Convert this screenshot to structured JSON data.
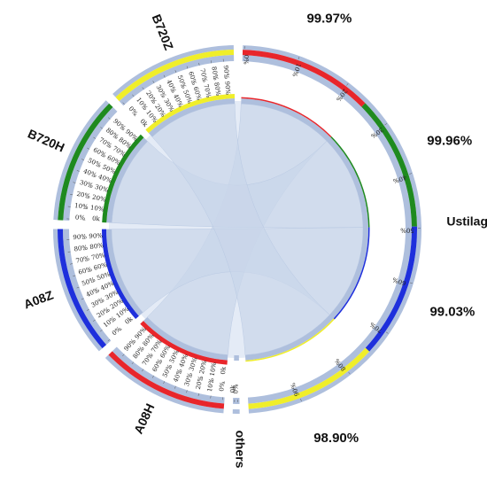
{
  "chart_data": {
    "type": "chord",
    "groups": [
      {
        "name": "Ustilago",
        "value": 4.0,
        "segments": [
          {
            "color": "#e8262b",
            "value": 1.0
          },
          {
            "color": "#1f8a1f",
            "value": 1.0
          },
          {
            "color": "#1e2fdc",
            "value": 1.0
          },
          {
            "color": "#f0ee2a",
            "value": 1.0
          }
        ]
      },
      {
        "name": "others",
        "value": 0.05,
        "segments": []
      },
      {
        "name": "A08H",
        "value": 0.95,
        "segments": [
          {
            "color": "#e8262b",
            "value": 0.95
          }
        ]
      },
      {
        "name": "A08Z",
        "value": 0.95,
        "segments": [
          {
            "color": "#1e2fdc",
            "value": 0.95
          }
        ]
      },
      {
        "name": "B720H",
        "value": 0.95,
        "segments": [
          {
            "color": "#1f8a1f",
            "value": 0.95
          }
        ]
      },
      {
        "name": "B720Z",
        "value": 0.95,
        "segments": [
          {
            "color": "#f0ee2a",
            "value": 0.95
          }
        ]
      }
    ],
    "ustilago_ticks": [
      "0k",
      "10k",
      "20k",
      "30k",
      "40k",
      "50k",
      "60k",
      "70k",
      "80k",
      "90k"
    ],
    "ustilago_pct_ticks": [
      "0%",
      "10%",
      "20%",
      "30%",
      "40%",
      "50%",
      "60%",
      "70%",
      "80%",
      "90%"
    ],
    "sample_ticks": [
      "0k",
      "10%",
      "20%",
      "30%",
      "40%",
      "50%",
      "60%",
      "70%",
      "80%",
      "90%"
    ],
    "sample_pct_ticks": [
      "0%",
      "10%",
      "20%",
      "30%",
      "40%",
      "50%",
      "60%",
      "70%",
      "80%",
      "90%"
    ],
    "others_ticks": [
      "0%",
      "0k"
    ],
    "links": [
      {
        "source": "A08H",
        "target": "Ustilago",
        "color": "#e8262b"
      },
      {
        "source": "B720H",
        "target": "Ustilago",
        "color": "#1f8a1f"
      },
      {
        "source": "A08Z",
        "target": "Ustilago",
        "color": "#1e2fdc"
      },
      {
        "source": "B720Z",
        "target": "Ustilago",
        "color": "#f0ee2a"
      }
    ],
    "annotations": [
      {
        "text": "99.97%",
        "segment": 0
      },
      {
        "text": "99.96%",
        "segment": 1
      },
      {
        "text": "99.03%",
        "segment": 2
      },
      {
        "text": "98.90%",
        "segment": 3
      }
    ],
    "colors": {
      "track": "#aebfdd",
      "chord_fill": "#c9d6ea",
      "background": "#ffffff"
    }
  }
}
